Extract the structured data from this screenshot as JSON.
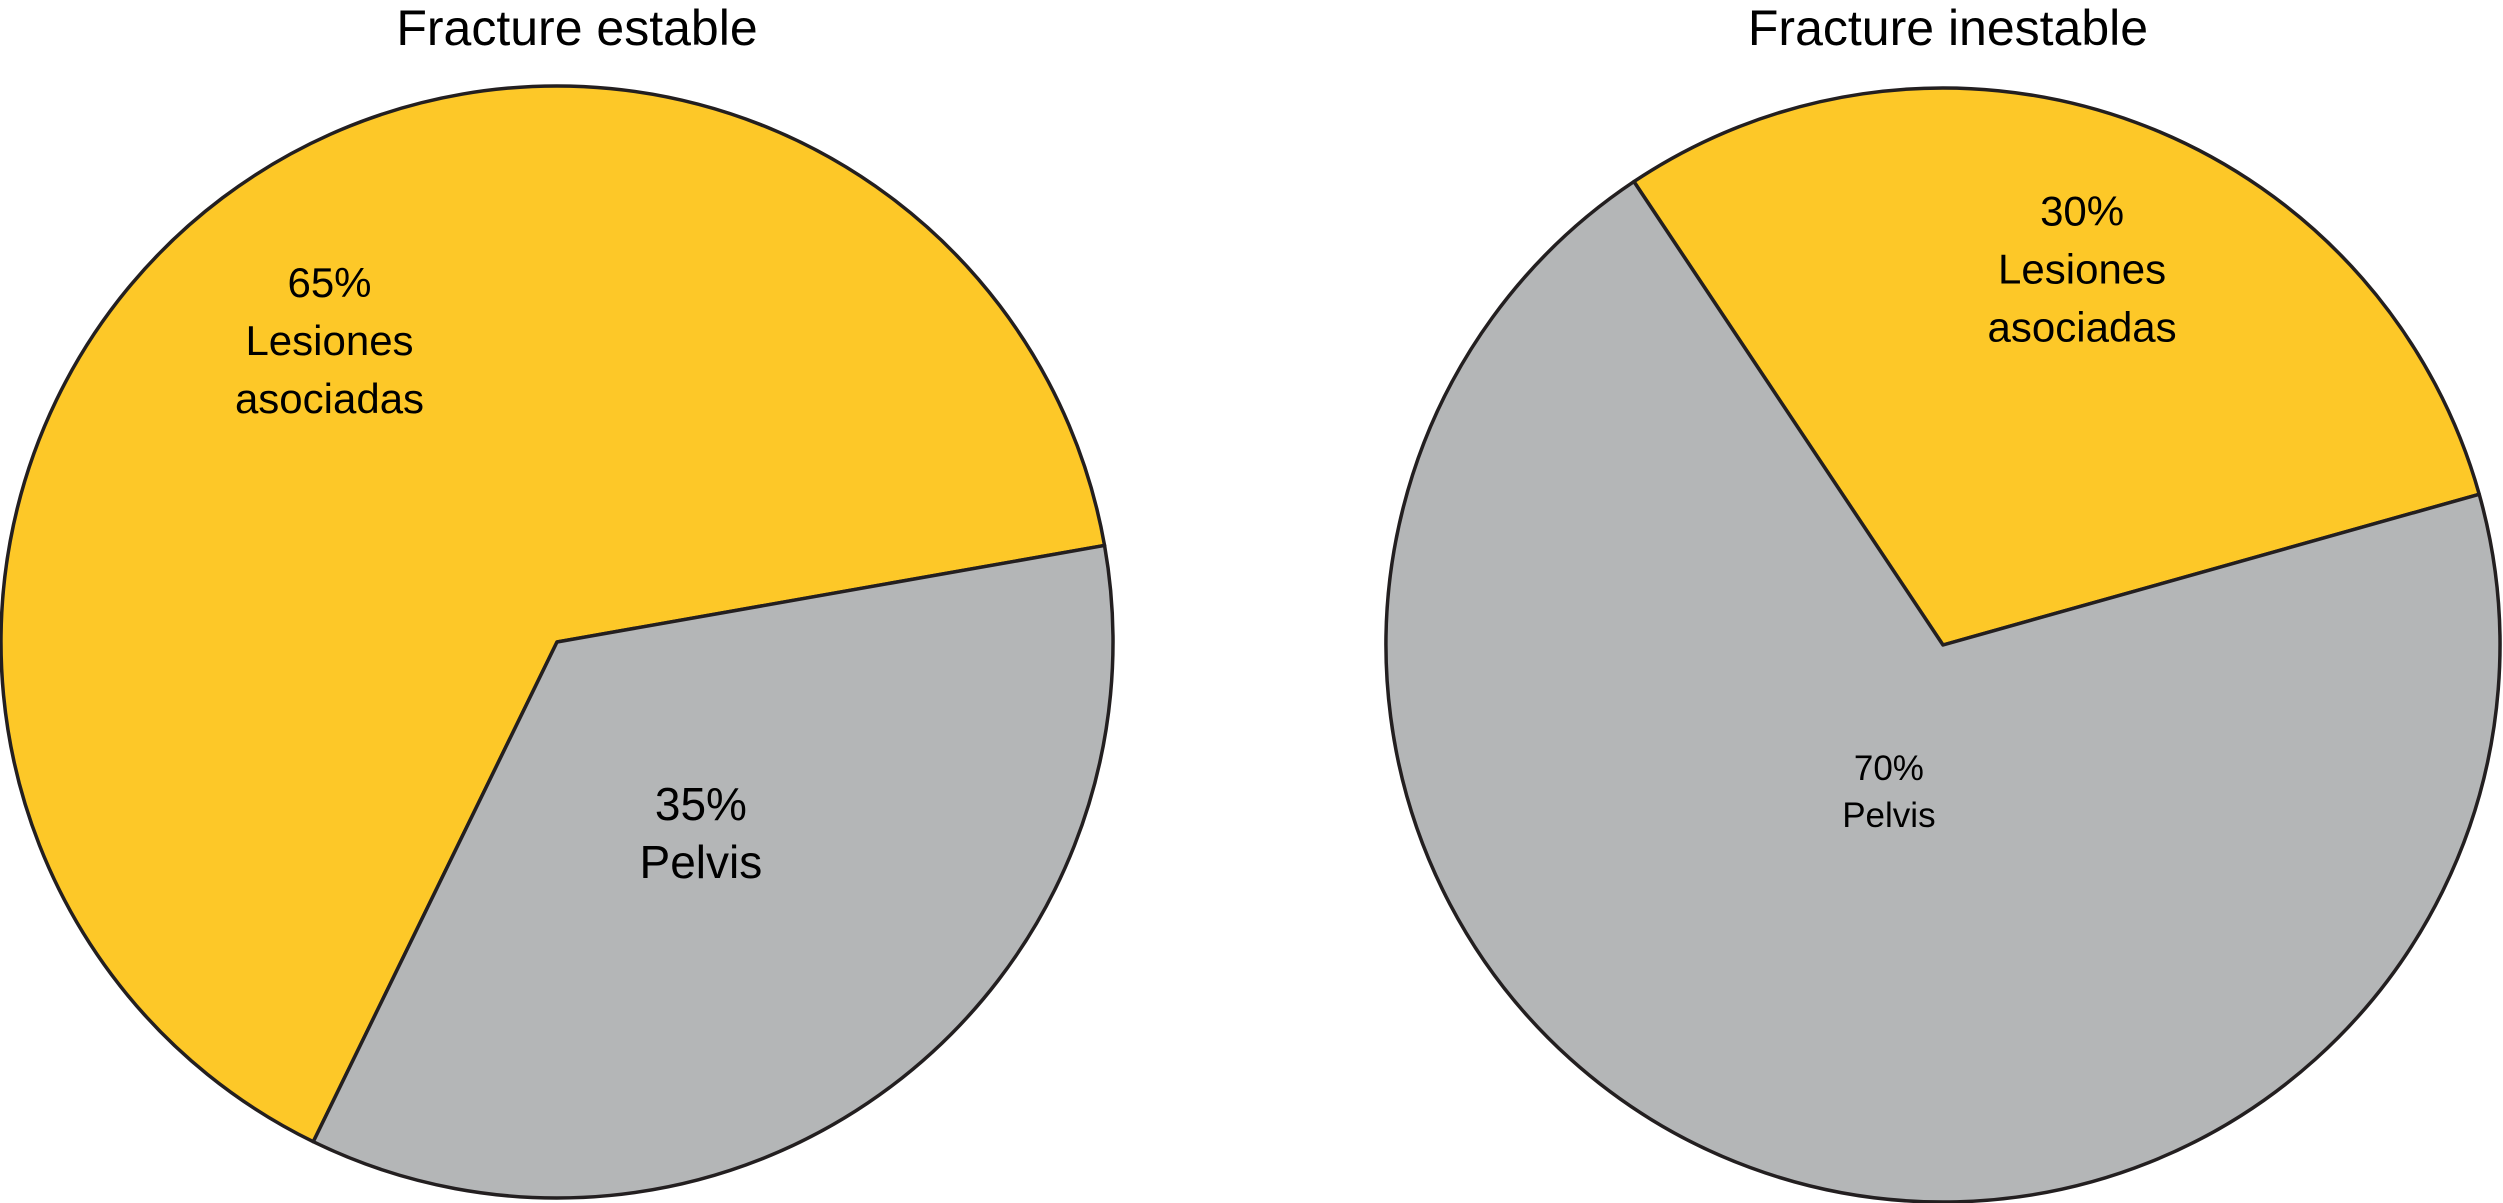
{
  "colors": {
    "lesiones": "#FDC828",
    "pelvis": "#B4B6B7",
    "outline": "#231F20"
  },
  "chart_data": [
    {
      "type": "pie",
      "title": "Fracture estable",
      "slices": [
        {
          "value": 65,
          "percent_label": "65%",
          "label_lines": [
            "Lesiones",
            "asociadas"
          ],
          "color": "#FDC828"
        },
        {
          "value": 35,
          "percent_label": "35%",
          "label_lines": [
            "Pelvis"
          ],
          "color": "#B4B6B7"
        }
      ]
    },
    {
      "type": "pie",
      "title": "Fracture inestable",
      "slices": [
        {
          "value": 30,
          "percent_label": "30%",
          "label_lines": [
            "Lesiones",
            "asociadas"
          ],
          "color": "#FDC828"
        },
        {
          "value": 70,
          "percent_label": "70%",
          "label_lines": [
            "Pelvis"
          ],
          "color": "#B4B6B7"
        }
      ]
    }
  ]
}
